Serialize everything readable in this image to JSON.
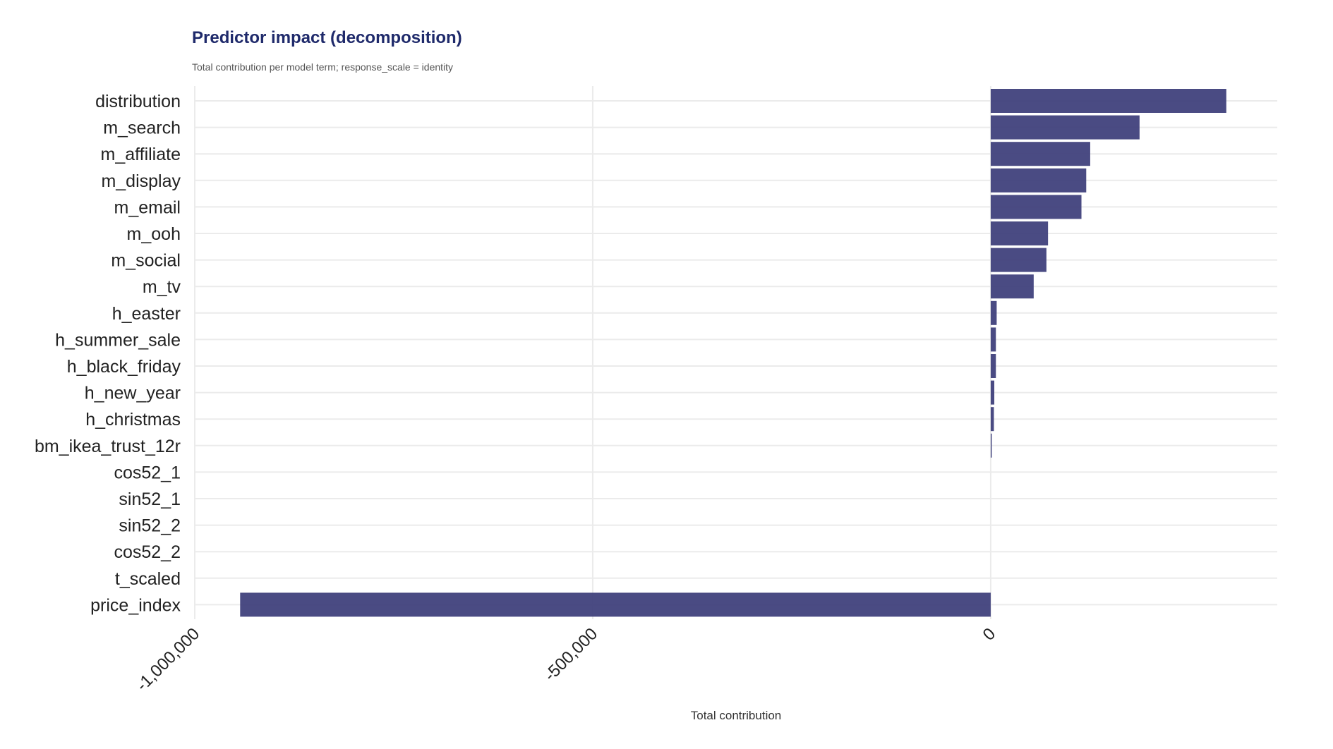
{
  "chart_data": {
    "type": "bar",
    "orientation": "horizontal",
    "title": "Predictor impact (decomposition)",
    "subtitle": "Total contribution per model term; response_scale = identity",
    "xlabel": "Total contribution",
    "ylabel": "",
    "xlim": [
      -1000000,
      360000
    ],
    "xticks": [
      -1000000,
      -500000,
      0
    ],
    "xtick_labels": [
      "-1,000,000",
      "-500,000",
      "0"
    ],
    "grid": true,
    "legend": "none",
    "bar_color": "#3b3c78",
    "categories": [
      "distribution",
      "m_search",
      "m_affiliate",
      "m_display",
      "m_email",
      "m_ooh",
      "m_social",
      "m_tv",
      "h_easter",
      "h_summer_sale",
      "h_black_friday",
      "h_new_year",
      "h_christmas",
      "bm_ikea_trust_12r",
      "cos52_1",
      "sin52_1",
      "sin52_2",
      "cos52_2",
      "t_scaled",
      "price_index"
    ],
    "values": [
      296000,
      187000,
      125000,
      120000,
      114000,
      72000,
      70000,
      54000,
      7500,
      6500,
      6500,
      4500,
      4000,
      1000,
      0,
      0,
      0,
      0,
      0,
      -943000
    ]
  }
}
